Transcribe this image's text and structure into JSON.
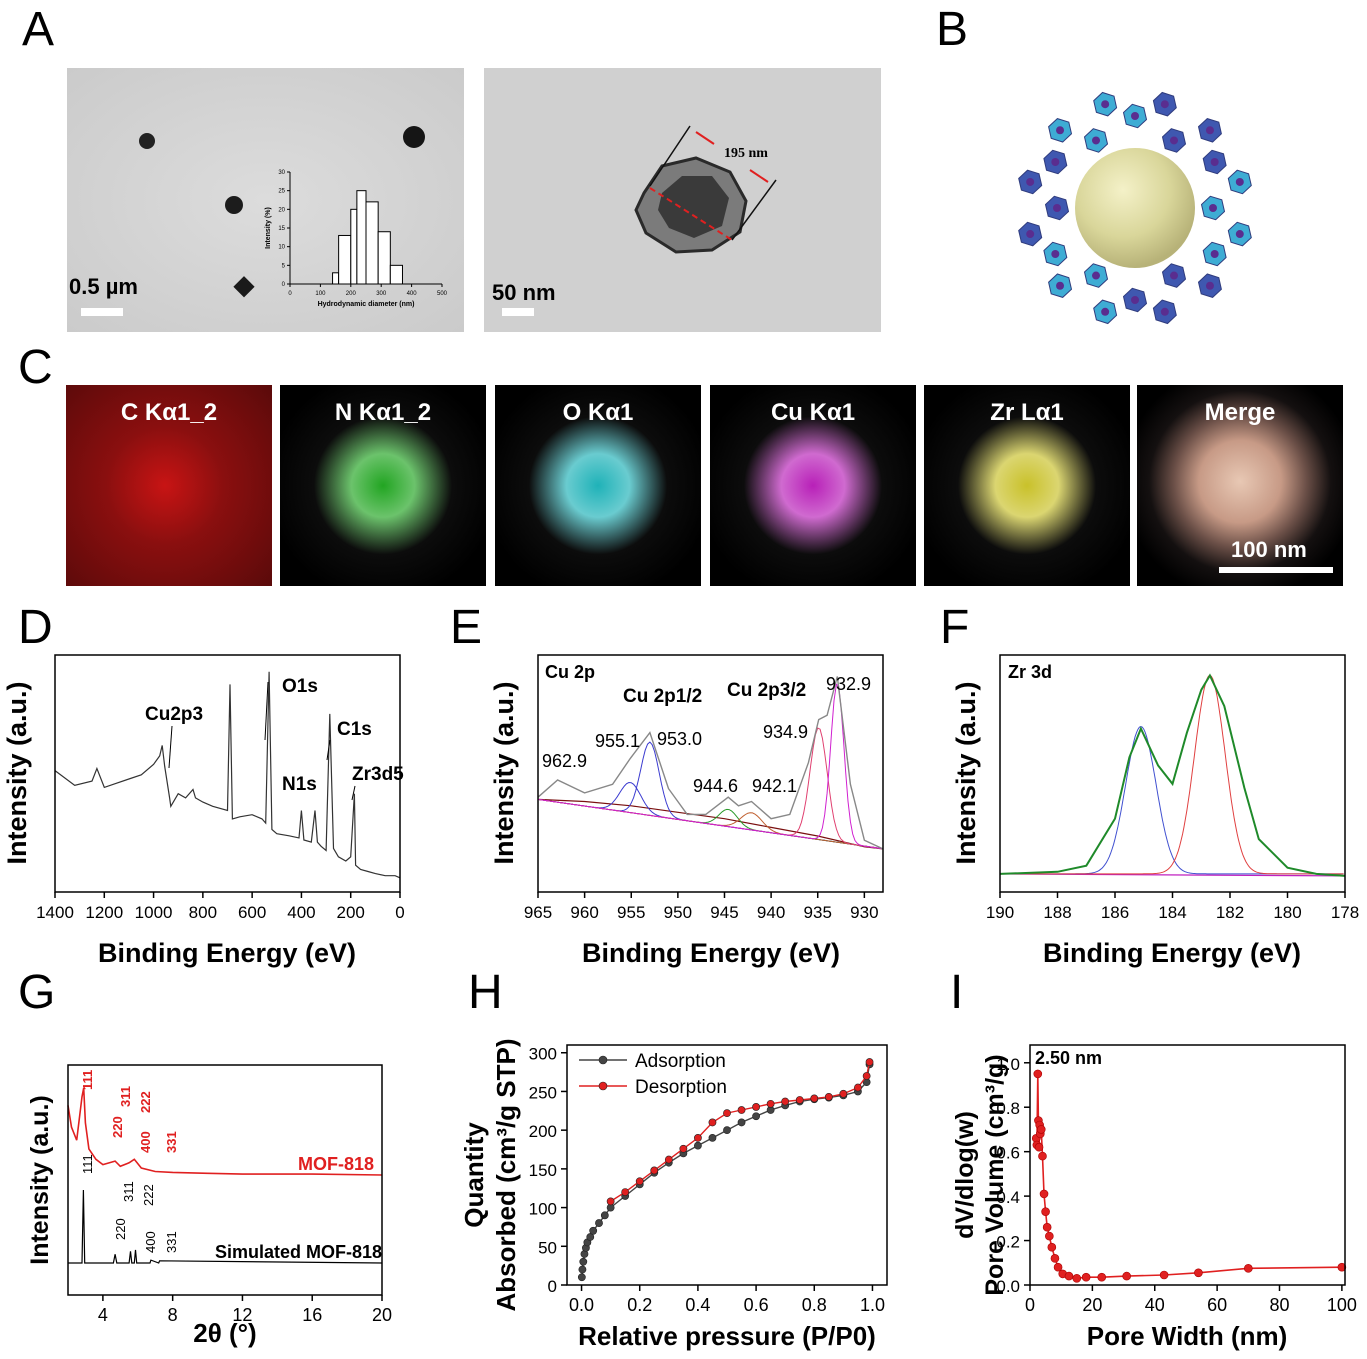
{
  "panels": {
    "A": "A",
    "B": "B",
    "C": "C",
    "D": "D",
    "E": "E",
    "F": "F",
    "G": "G",
    "H": "H",
    "I": "I"
  },
  "tem": {
    "left_scale": "0.5 µm",
    "right_scale": "50 nm",
    "measure": "195 nm"
  },
  "dls_inset": {
    "type": "bar",
    "x": [
      50,
      100,
      150,
      200,
      250,
      300,
      350,
      400,
      450,
      500
    ],
    "xticks": [
      "0",
      "100",
      "200",
      "300",
      "400",
      "500"
    ],
    "yticks": [
      "0",
      "5",
      "10",
      "15",
      "20",
      "25",
      "30"
    ],
    "bins": [
      [
        140,
        160,
        3
      ],
      [
        160,
        200,
        13
      ],
      [
        200,
        220,
        20
      ],
      [
        220,
        250,
        25
      ],
      [
        250,
        290,
        22
      ],
      [
        290,
        330,
        14
      ],
      [
        330,
        370,
        5
      ]
    ],
    "xlabel": "Hydrodynamic diameter (nm)",
    "ylabel": "Intensity (%)"
  },
  "eds": {
    "labels": [
      "C Kα1_2",
      "N Kα1_2",
      "O Kα1",
      "Cu Kα1",
      "Zr Lα1",
      "Merge"
    ],
    "colors": [
      "#c81414",
      "#22a522",
      "#1fb2b8",
      "#b820b8",
      "#c9c12a",
      "#d4a890"
    ],
    "scale": "100 nm"
  },
  "chart_data": [
    {
      "id": "D",
      "type": "line",
      "xlabel": "Binding Energy (eV)",
      "ylabel": "Intensity (a.u.)",
      "xlim": [
        1400,
        0
      ],
      "xticks": [
        "1400",
        "1200",
        "1000",
        "800",
        "600",
        "400",
        "200",
        "0"
      ],
      "annotations": [
        "Cu2p3",
        "O1s",
        "C1s",
        "N1s",
        "Zr3d5"
      ],
      "series": [
        {
          "x": [
            1400,
            1320,
            1250,
            1230,
            1200,
            1150,
            1100,
            1050,
            1000,
            975,
            965,
            955,
            935,
            930,
            900,
            870,
            840,
            830,
            800,
            760,
            700,
            690,
            680,
            650,
            600,
            560,
            545,
            531,
            520,
            500,
            450,
            410,
            400,
            390,
            360,
            345,
            335,
            320,
            300,
            285,
            270,
            250,
            220,
            200,
            185,
            180,
            160,
            130,
            100,
            60,
            20,
            0
          ],
          "y": [
            0.53,
            0.46,
            0.48,
            0.54,
            0.45,
            0.47,
            0.49,
            0.51,
            0.56,
            0.6,
            0.65,
            0.55,
            0.4,
            0.36,
            0.42,
            0.4,
            0.44,
            0.4,
            0.38,
            0.36,
            0.34,
            0.94,
            0.3,
            0.31,
            0.32,
            0.3,
            0.28,
            1.0,
            0.25,
            0.23,
            0.22,
            0.21,
            0.34,
            0.2,
            0.19,
            0.34,
            0.19,
            0.17,
            0.15,
            0.8,
            0.16,
            0.12,
            0.1,
            0.12,
            0.42,
            0.08,
            0.06,
            0.05,
            0.04,
            0.03,
            0.03,
            0.02
          ]
        }
      ]
    },
    {
      "id": "E",
      "type": "line",
      "title": "Cu 2p",
      "xlabel": "Binding Energy (eV)",
      "ylabel": "Intensity (a.u.)",
      "xlim": [
        965,
        928
      ],
      "xticks": [
        "965",
        "960",
        "955",
        "950",
        "945",
        "940",
        "935",
        "930"
      ],
      "annotations": [
        "962.9",
        "955.1",
        "953.0",
        "944.6",
        "942.1",
        "934.9",
        "932.9",
        "Cu 2p1/2",
        "Cu 2p3/2"
      ],
      "series": [
        {
          "x": [
            965,
            962.9,
            960,
            957,
            955.1,
            953,
            951,
            949,
            947,
            944.6,
            943.5,
            942.1,
            940,
            938,
            936,
            934.9,
            934,
            932.9,
            931.5,
            930,
            928
          ],
          "y": [
            0.44,
            0.52,
            0.46,
            0.5,
            0.62,
            0.74,
            0.48,
            0.36,
            0.36,
            0.44,
            0.4,
            0.42,
            0.34,
            0.36,
            0.6,
            0.8,
            0.82,
            1.0,
            0.5,
            0.24,
            0.2
          ]
        },
        {
          "x": [
            965,
            960,
            955,
            950,
            945,
            940,
            935,
            930,
            928
          ],
          "y": [
            0.43,
            0.42,
            0.4,
            0.37,
            0.34,
            0.3,
            0.26,
            0.21,
            0.2
          ]
        }
      ]
    },
    {
      "id": "F",
      "type": "line",
      "title": "Zr 3d",
      "xlabel": "Binding Energy (eV)",
      "ylabel": "Intensity (a.u.)",
      "xlim": [
        190,
        178
      ],
      "xticks": [
        "190",
        "188",
        "186",
        "184",
        "182",
        "180",
        "178"
      ],
      "series": [
        {
          "x": [
            190,
            188,
            187,
            186,
            185.5,
            185.1,
            184.5,
            184,
            183.5,
            183,
            182.7,
            182.2,
            181.5,
            181,
            180,
            179,
            178
          ],
          "y": [
            0.03,
            0.04,
            0.07,
            0.3,
            0.6,
            0.74,
            0.56,
            0.47,
            0.72,
            0.93,
            1.0,
            0.85,
            0.45,
            0.2,
            0.06,
            0.03,
            0.02
          ]
        },
        {
          "x": [
            190,
            178
          ],
          "y": [
            0.03,
            0.02
          ]
        }
      ]
    },
    {
      "id": "G",
      "type": "line",
      "xlabel": "2θ (°)",
      "ylabel": "Intensity (a.u.)",
      "xlim": [
        2,
        20
      ],
      "xticks": [
        "4",
        "8",
        "12",
        "16",
        "20"
      ],
      "legend": [
        "MOF-818",
        "Simulated MOF-818"
      ],
      "peak_labels": [
        "111",
        "220",
        "311",
        "222",
        "400",
        "331"
      ],
      "series": [
        {
          "name": "MOF-818",
          "x": [
            2.0,
            2.2,
            2.5,
            2.8,
            2.9,
            3.0,
            3.2,
            3.6,
            4.0,
            4.7,
            5.0,
            5.5,
            5.8,
            6.2,
            7.0,
            8,
            10,
            12,
            16,
            20
          ],
          "y": [
            0.8,
            0.55,
            0.4,
            0.9,
            1.0,
            0.6,
            0.3,
            0.18,
            0.12,
            0.16,
            0.1,
            0.14,
            0.18,
            0.08,
            0.04,
            0.03,
            0.02,
            0.01,
            0.01,
            0.0
          ]
        },
        {
          "name": "Simulated MOF-818",
          "x": [
            2.0,
            2.8,
            2.88,
            2.96,
            3.1,
            4.6,
            4.7,
            4.8,
            5.5,
            5.58,
            5.66,
            5.8,
            5.87,
            5.94,
            6.7,
            6.75,
            7.2,
            7.25,
            20
          ],
          "y": [
            0.0,
            0.0,
            1.0,
            0.0,
            0.0,
            0.0,
            0.12,
            0.0,
            0.0,
            0.16,
            0.0,
            0.0,
            0.18,
            0.0,
            0.0,
            0.04,
            0.0,
            0.03,
            0.0
          ]
        }
      ]
    },
    {
      "id": "H",
      "type": "line",
      "xlabel": "Relative pressure (P/P0)",
      "ylabel": "Quantity Absorbed (cm3/g STP)",
      "xlim": [
        -0.05,
        1.05
      ],
      "ylim": [
        0,
        310
      ],
      "xticks": [
        "0.0",
        "0.2",
        "0.4",
        "0.6",
        "0.8",
        "1.0"
      ],
      "yticks": [
        "0",
        "50",
        "100",
        "150",
        "200",
        "250",
        "300"
      ],
      "series": [
        {
          "name": "Adsorption",
          "color": "#444444",
          "x": [
            0.001,
            0.003,
            0.006,
            0.01,
            0.015,
            0.02,
            0.03,
            0.04,
            0.06,
            0.08,
            0.1,
            0.15,
            0.2,
            0.25,
            0.3,
            0.35,
            0.4,
            0.45,
            0.5,
            0.55,
            0.6,
            0.65,
            0.7,
            0.75,
            0.8,
            0.85,
            0.9,
            0.95,
            0.98,
            0.99
          ],
          "y": [
            10,
            20,
            30,
            40,
            48,
            55,
            62,
            70,
            80,
            90,
            100,
            115,
            130,
            145,
            158,
            170,
            180,
            190,
            200,
            210,
            218,
            226,
            232,
            237,
            240,
            242,
            245,
            250,
            262,
            285
          ]
        },
        {
          "name": "Desorption",
          "color": "#e02020",
          "x": [
            0.99,
            0.98,
            0.95,
            0.9,
            0.85,
            0.8,
            0.75,
            0.7,
            0.65,
            0.6,
            0.55,
            0.5,
            0.45,
            0.4,
            0.35,
            0.3,
            0.25,
            0.2,
            0.15,
            0.1
          ],
          "y": [
            288,
            270,
            255,
            247,
            243,
            241,
            239,
            237,
            234,
            230,
            226,
            222,
            210,
            190,
            176,
            162,
            148,
            134,
            120,
            108
          ]
        }
      ]
    },
    {
      "id": "I",
      "type": "line",
      "xlabel": "Pore Width (nm)",
      "ylabel": "dV/dlog(w) Pore Volume (cm3/g)",
      "xlim": [
        0,
        101
      ],
      "ylim": [
        0,
        1.08
      ],
      "xticks": [
        "0",
        "20",
        "40",
        "60",
        "80",
        "100"
      ],
      "yticks": [
        "0.0",
        "0.2",
        "0.4",
        "0.6",
        "0.8",
        "1.0"
      ],
      "annotation": "2.50 nm",
      "series": [
        {
          "color": "#e02020",
          "x": [
            2.0,
            2.2,
            2.5,
            2.7,
            2.9,
            3.1,
            3.3,
            3.6,
            4.0,
            4.5,
            5.0,
            5.5,
            6.2,
            7.0,
            8.0,
            9.0,
            10.5,
            12.5,
            15,
            18,
            23,
            31,
            43,
            54,
            70,
            100
          ],
          "y": [
            0.66,
            0.63,
            0.95,
            0.74,
            0.62,
            0.72,
            0.68,
            0.7,
            0.58,
            0.41,
            0.33,
            0.26,
            0.22,
            0.17,
            0.12,
            0.08,
            0.05,
            0.04,
            0.03,
            0.035,
            0.035,
            0.04,
            0.045,
            0.055,
            0.075,
            0.08
          ]
        }
      ]
    }
  ]
}
